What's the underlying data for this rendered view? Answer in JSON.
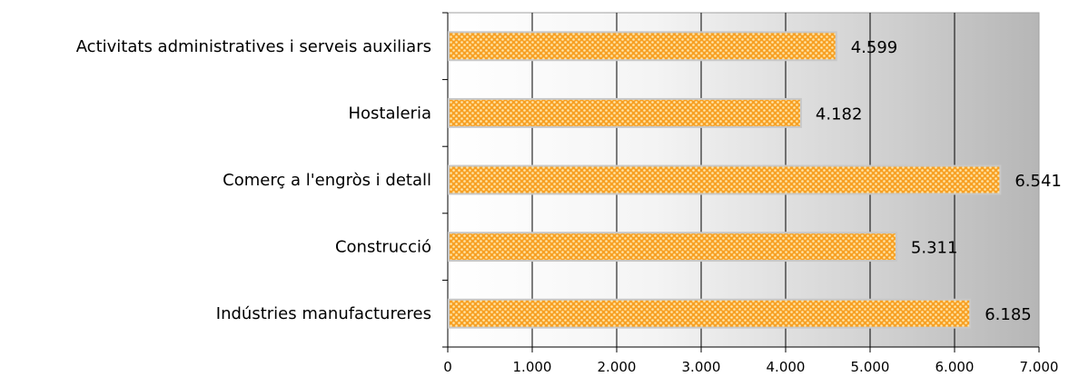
{
  "chart_data": {
    "type": "bar",
    "orientation": "horizontal",
    "categories": [
      "Activitats administratives i serveis auxiliars",
      "Hostaleria",
      "Comerç a l'engròs i detall",
      "Construcció",
      "Indústries manufactureres"
    ],
    "values": [
      4599,
      4182,
      6541,
      5311,
      6185
    ],
    "data_labels": [
      "4.599",
      "4.182",
      "6.541",
      "5.311",
      "6.185"
    ],
    "x_ticks": [
      0,
      1000,
      2000,
      3000,
      4000,
      5000,
      6000,
      7000
    ],
    "x_tick_labels": [
      "0",
      "1.000",
      "2.000",
      "3.000",
      "4.000",
      "5.000",
      "6.000",
      "7.000"
    ],
    "xlim": [
      0,
      7000
    ],
    "grid": "vertical",
    "legend": "none",
    "bar_color": "#f7a024",
    "bar_pattern_color": "#ffe6a8",
    "plot_background": "gradient-white-to-gray"
  }
}
